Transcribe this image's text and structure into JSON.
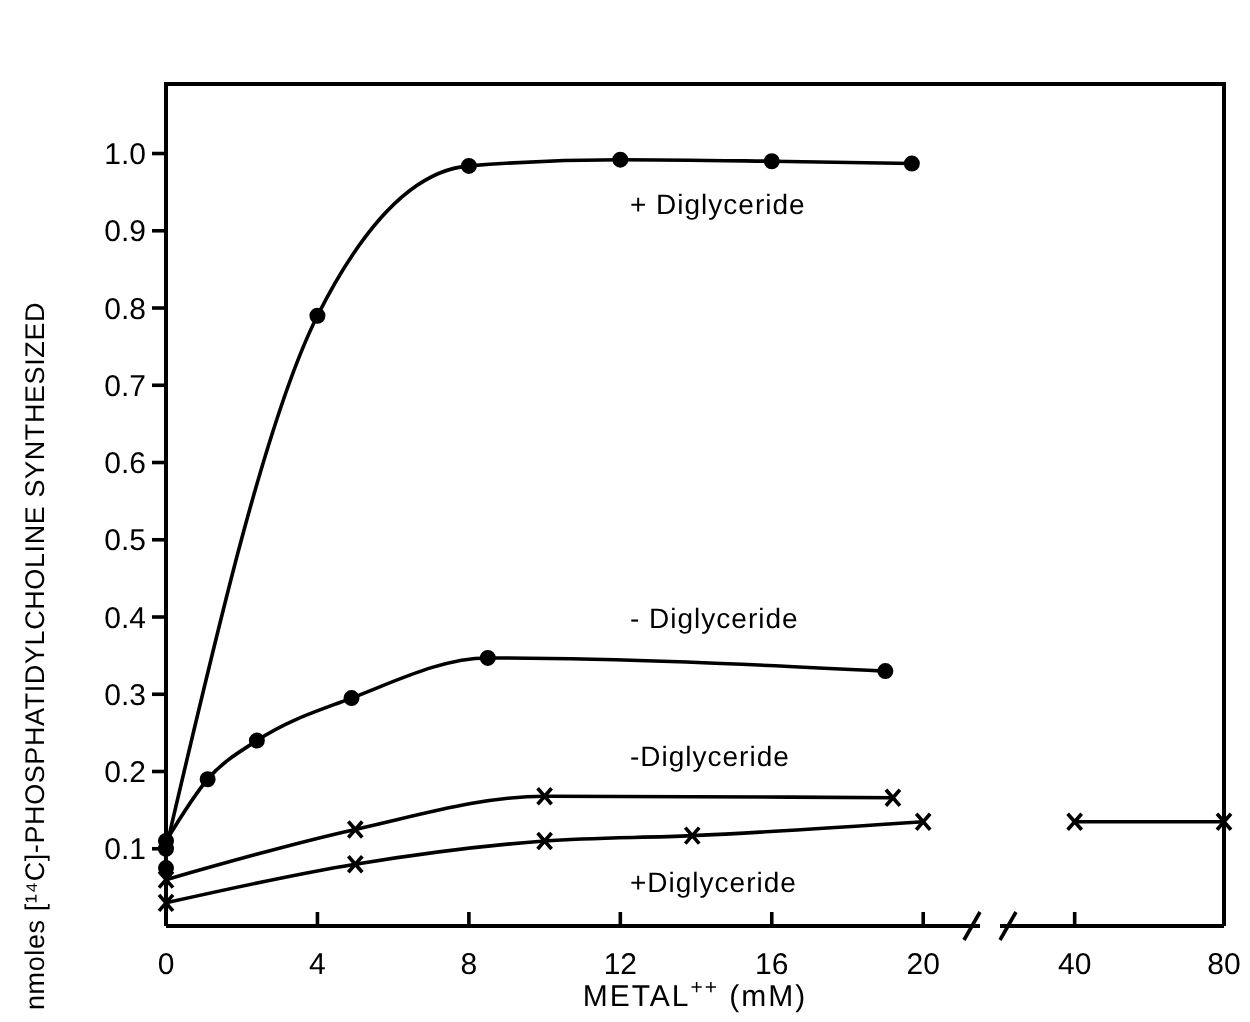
{
  "chart_data": [
    {
      "type": "line",
      "xlabel": "METAL$^{++}$ (mM)",
      "ylabel": "nmoles [¹⁴C]-PHOSPHATIDYLCHOLINE SYNTHESIZED",
      "xlim": [
        0,
        21.5
      ],
      "xticks": [
        0,
        4,
        8,
        12,
        16,
        20
      ],
      "ylim": [
        0,
        1.09
      ],
      "yticks": [
        0.1,
        0.2,
        0.3,
        0.4,
        0.5,
        0.6,
        0.7,
        0.8,
        0.9,
        {
          "value": 1,
          "label": "1.0"
        }
      ],
      "series": [
        {
          "name": "+ Diglyceride",
          "color": "#000000",
          "marker": "circle",
          "x": [
            0,
            4,
            8,
            12,
            16,
            19.7
          ],
          "values": [
            0.1,
            0.79,
            0.984,
            0.992,
            0.99,
            0.987
          ]
        },
        {
          "name": "- Diglyceride",
          "color": "#000000",
          "marker": "circle",
          "x": [
            0,
            1.1,
            2.4,
            4.9,
            8.5,
            19
          ],
          "values": [
            0.11,
            0.19,
            0.24,
            0.295,
            0.347,
            0.33
          ]
        },
        {
          "type": "scatter",
          "color": "#000000",
          "marker": "circle",
          "x": [
            0
          ],
          "values": [
            0.075
          ]
        },
        {
          "name": "-Diglyceride",
          "color": "#000000",
          "marker": "cross",
          "x": [
            0,
            5,
            10,
            19.2
          ],
          "values": [
            0.06,
            0.125,
            0.168,
            0.166
          ]
        },
        {
          "name": "+Diglyceride",
          "color": "#000000",
          "marker": "cross",
          "x": [
            0,
            5,
            10,
            13.9,
            20
          ],
          "values": [
            0.03,
            0.08,
            0.11,
            0.117,
            0.135
          ]
        }
      ]
    },
    {
      "type": "line",
      "xlim": [
        20,
        80
      ],
      "xticks": [
        40,
        80
      ],
      "ylim": [
        0,
        1.09
      ],
      "tick_labels": "x",
      "series": [
        {
          "color": "#000000",
          "marker": "cross",
          "x": [
            40,
            80
          ],
          "values": [
            0.135,
            0.135
          ]
        }
      ]
    }
  ]
}
